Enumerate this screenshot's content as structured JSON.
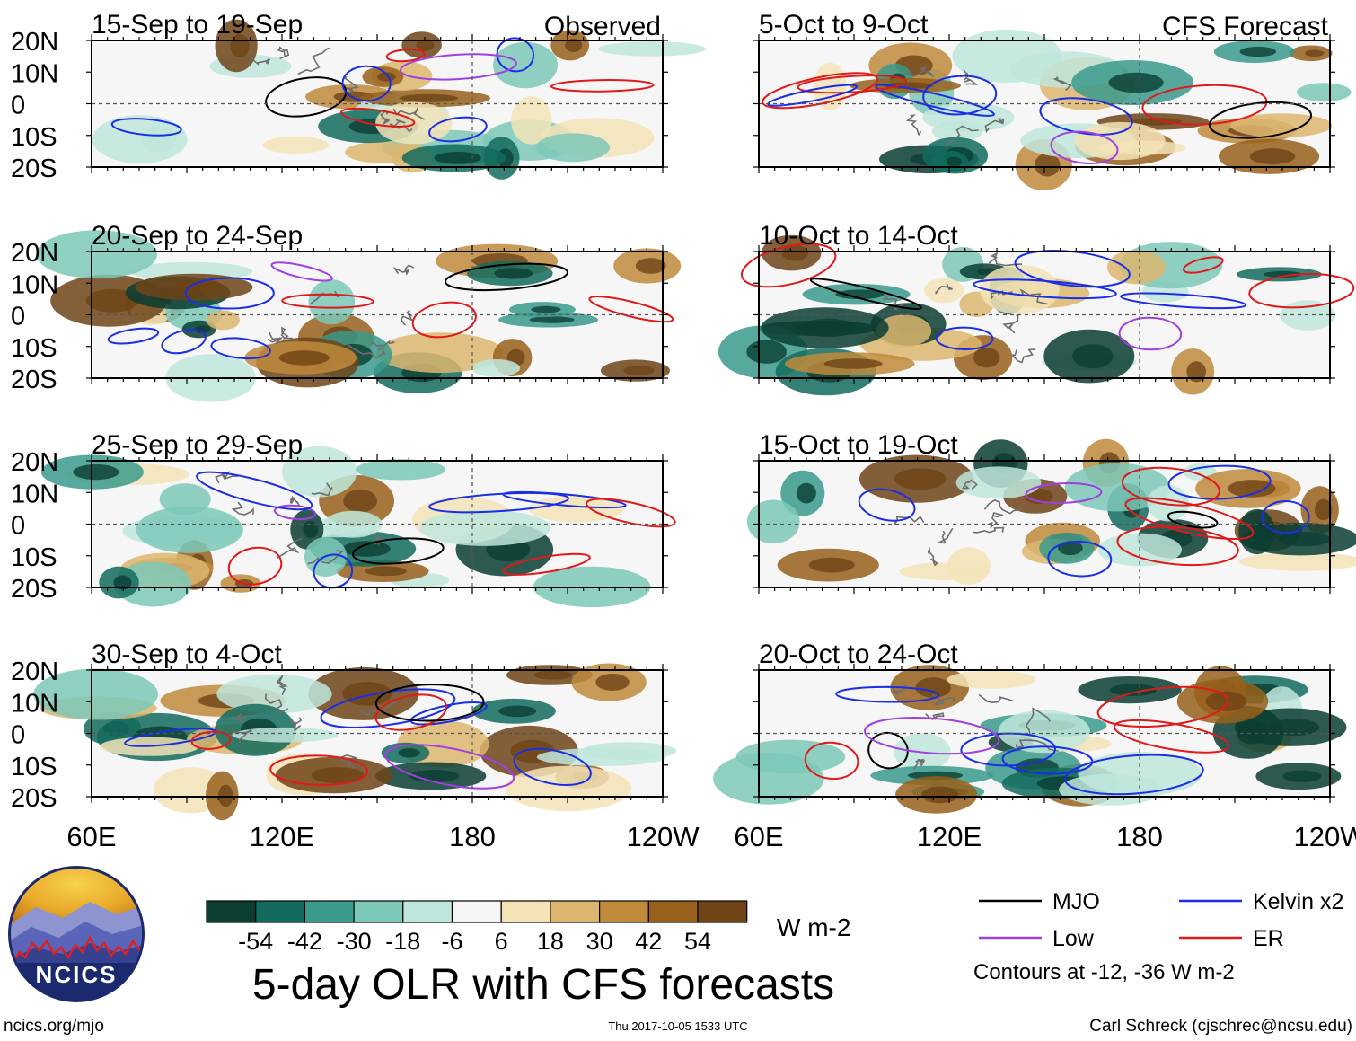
{
  "figure": {
    "title": "5-day OLR with CFS forecasts",
    "observed_label": "Observed",
    "forecast_label": "CFS Forecast",
    "footer_left": "ncics.org/mjo",
    "footer_center": "Thu 2017-10-05 1533 UTC",
    "footer_right": "Carl Schreck (cjschrec@ncsu.edu)",
    "logo_text": "NCICS"
  },
  "axes": {
    "lat_labels": [
      "20N",
      "10N",
      "0",
      "10S",
      "20S"
    ],
    "lon_labels": [
      "60E",
      "120E",
      "180",
      "120W"
    ]
  },
  "panels": [
    {
      "period": "15-Sep to 19-Sep",
      "kind": "observed"
    },
    {
      "period": "20-Sep to 24-Sep",
      "kind": "observed"
    },
    {
      "period": "25-Sep to 29-Sep",
      "kind": "observed"
    },
    {
      "period": "30-Sep to 4-Oct",
      "kind": "observed"
    },
    {
      "period": "5-Oct to 9-Oct",
      "kind": "forecast"
    },
    {
      "period": "10-Oct to 14-Oct",
      "kind": "forecast"
    },
    {
      "period": "15-Oct to 19-Oct",
      "kind": "forecast"
    },
    {
      "period": "20-Oct to 24-Oct",
      "kind": "forecast"
    }
  ],
  "colorbar": {
    "labels": [
      "-54",
      "-42",
      "-30",
      "-18",
      "-6",
      "6",
      "18",
      "30",
      "42",
      "54"
    ],
    "colors": [
      "#0b3d33",
      "#136b5e",
      "#3a9a8c",
      "#7cc8b8",
      "#bfe6dc",
      "#f5f5f5",
      "#f3e3b7",
      "#dcb66e",
      "#c08a3c",
      "#98601b",
      "#6e4417"
    ],
    "units": "W m-2"
  },
  "legend": {
    "items": [
      {
        "label": "MJO",
        "color": "#000000"
      },
      {
        "label": "Kelvin x2",
        "color": "#1a2ee6"
      },
      {
        "label": "Low",
        "color": "#a040e0"
      },
      {
        "label": "ER",
        "color": "#e01a1a"
      }
    ],
    "note": "Contours at -12, -36 W m-2"
  }
}
